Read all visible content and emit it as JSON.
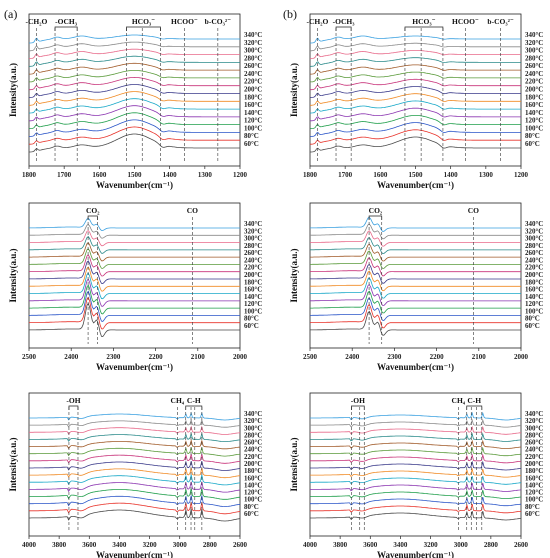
{
  "panel_labels": [
    "(a)",
    "(b)"
  ],
  "colors": [
    "#4a4a4a",
    "#e8332a",
    "#2a55c8",
    "#1f9e4a",
    "#8a34b0",
    "#18a8c8",
    "#f08a24",
    "#3a3a8a",
    "#c8337a",
    "#5a9a3a",
    "#a05a28",
    "#2a8a8a",
    "#e86a8a",
    "#8a8a8a",
    "#3aa0e0"
  ],
  "chart_data": [
    {
      "panel": "(a)",
      "type": "line",
      "xlabel": "Wavenumber(cm⁻¹)",
      "ylabel": "Intensity(a.u.)",
      "xlim": [
        1800,
        1200
      ],
      "xticks": [
        "1800",
        "1700",
        "1600",
        "1500",
        "1400",
        "1300",
        "1200"
      ],
      "series_names": [
        "60°C",
        "80°C",
        "100°C",
        "120°C",
        "140°C",
        "160°C",
        "180°C",
        "200°C",
        "220°C",
        "240°C",
        "260°C",
        "280°C",
        "300°C",
        "320°C",
        "340°C"
      ],
      "annotations": [
        {
          "label": "-CH₂O",
          "x": [
            1779
          ]
        },
        {
          "label": "-OCH₃",
          "x": [
            1726,
            1663
          ]
        },
        {
          "label": "HCO₃⁻",
          "x": [
            1523,
            1478,
            1426
          ]
        },
        {
          "label": "HCOO⁻",
          "x": [
            1358
          ]
        },
        {
          "label": "b-CO₃²⁻",
          "x": [
            1263
          ]
        }
      ]
    },
    {
      "panel": "(b)",
      "type": "line",
      "xlabel": "Wavenumber(cm⁻¹)",
      "ylabel": "Intensity(a.u.)",
      "xlim": [
        1800,
        1200
      ],
      "xticks": [
        "1800",
        "1700",
        "1600",
        "1500",
        "1400",
        "1300",
        "1200"
      ],
      "series_names": [
        "60°C",
        "80°C",
        "100°C",
        "120°C",
        "140°C",
        "160°C",
        "180°C",
        "200°C",
        "220°C",
        "240°C",
        "260°C",
        "280°C",
        "300°C",
        "320°C",
        "340°C"
      ],
      "annotations": [
        {
          "label": "-CH₂O",
          "x": [
            1779
          ]
        },
        {
          "label": "-OCH₃",
          "x": [
            1726,
            1683
          ]
        },
        {
          "label": "HCO₃⁻",
          "x": [
            1530,
            1484,
            1422
          ]
        },
        {
          "label": "HCOO⁻",
          "x": [
            1358
          ]
        },
        {
          "label": "b-CO₃²⁻",
          "x": [
            1258
          ]
        }
      ]
    },
    {
      "panel": "(a)",
      "type": "line",
      "xlabel": "Wavenumber(cm⁻¹)",
      "ylabel": "Intensity(a.u.)",
      "xlim": [
        2500,
        2000
      ],
      "xticks": [
        "2500",
        "2400",
        "2300",
        "2200",
        "2100",
        "2000"
      ],
      "series_names": [
        "60°C",
        "80°C",
        "100°C",
        "120°C",
        "140°C",
        "160°C",
        "180°C",
        "200°C",
        "220°C",
        "240°C",
        "260°C",
        "280°C",
        "300°C",
        "320°C",
        "340°C"
      ],
      "annotations": [
        {
          "label": "CO₂",
          "x": [
            2360,
            2338
          ]
        },
        {
          "label": "CO",
          "x": [
            2113
          ]
        }
      ]
    },
    {
      "panel": "(b)",
      "type": "line",
      "xlabel": "Wavenumber(cm⁻¹)",
      "ylabel": "Intensity(a.u.)",
      "xlim": [
        2500,
        2000
      ],
      "xticks": [
        "2500",
        "2400",
        "2300",
        "2200",
        "2100",
        "2000"
      ],
      "series_names": [
        "60°C",
        "80°C",
        "100°C",
        "120°C",
        "140°C",
        "160°C",
        "180°C",
        "200°C",
        "220°C",
        "240°C",
        "260°C",
        "280°C",
        "300°C",
        "320°C",
        "340°C"
      ],
      "annotations": [
        {
          "label": "CO₂",
          "x": [
            2360,
            2330
          ]
        },
        {
          "label": "CO",
          "x": [
            2113
          ]
        }
      ]
    },
    {
      "panel": "(a)",
      "type": "line",
      "xlabel": "Wavenumber(cm⁻¹)",
      "ylabel": "Intensity(a.u.)",
      "xlim": [
        4000,
        2600
      ],
      "xticks": [
        "4000",
        "3800",
        "3600",
        "3400",
        "3200",
        "3000",
        "2800",
        "2600"
      ],
      "series_names": [
        "60°C",
        "80°C",
        "100°C",
        "120°C",
        "140°C",
        "160°C",
        "180°C",
        "200°C",
        "220°C",
        "240°C",
        "260°C",
        "280°C",
        "300°C",
        "320°C",
        "340°C"
      ],
      "annotations": [
        {
          "label": "-OH",
          "x": [
            3735,
            3675
          ]
        },
        {
          "label": "CH₄",
          "x": [
            3016
          ]
        },
        {
          "label": "C-H",
          "x": [
            2960,
            2925,
            2900,
            2853
          ]
        }
      ]
    },
    {
      "panel": "(b)",
      "type": "line",
      "xlabel": "Wavenumber(cm⁻¹)",
      "ylabel": "Intensity(a.u.)",
      "xlim": [
        4000,
        2600
      ],
      "xticks": [
        "4000",
        "3800",
        "3600",
        "3400",
        "3200",
        "3000",
        "2800",
        "2600"
      ],
      "series_names": [
        "60°C",
        "80°C",
        "100°C",
        "120°C",
        "140°C",
        "160°C",
        "180°C",
        "200°C",
        "220°C",
        "240°C",
        "260°C",
        "280°C",
        "300°C",
        "320°C",
        "340°C"
      ],
      "annotations": [
        {
          "label": "-OH",
          "x": [
            3725,
            3670,
            3640
          ]
        },
        {
          "label": "CH₄",
          "x": [
            3016
          ]
        },
        {
          "label": "C-H",
          "x": [
            2960,
            2930,
            2895,
            2860
          ]
        }
      ]
    }
  ]
}
